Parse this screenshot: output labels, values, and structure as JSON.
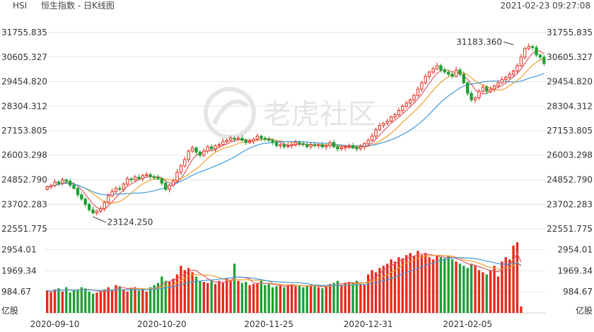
{
  "header": {
    "symbol": "HSI",
    "title": "恒生指数 - 日K线图",
    "timestamp": "2021-02-23 09:27:08"
  },
  "watermark": "老虎社区",
  "colors": {
    "up": "#e8291c",
    "down": "#1f9f35",
    "ma1": "#e05a6a",
    "ma2": "#f0a030",
    "ma3": "#3f9ad8",
    "grid": "#e6e6e6",
    "text": "#333333"
  },
  "chart_data": {
    "type": "candlestick",
    "price_axis": {
      "ticks": [
        31755.835,
        30605.327,
        29454.82,
        28304.312,
        27153.805,
        26003.298,
        24852.79,
        23702.283,
        22551.775
      ],
      "tick_labels": [
        "31755.835",
        "30605.327",
        "29454.820",
        "28304.312",
        "27153.805",
        "26003.298",
        "24852.790",
        "23702.283",
        "22551.775"
      ],
      "range": [
        22551.775,
        31755.835
      ]
    },
    "volume_axis": {
      "ticks": [
        2954.01,
        1969.34,
        984.67
      ],
      "tick_labels": [
        "2954.01",
        "1969.34",
        "984.67"
      ],
      "unit_label": "亿股",
      "range": [
        0,
        3300
      ]
    },
    "x_labels": [
      "2020-09-10",
      "2020-10-20",
      "2020-11-25",
      "2020-12-31",
      "2021-02-05"
    ],
    "x_label_index": [
      2,
      30,
      58,
      84,
      110
    ],
    "annotations": [
      {
        "text": "31183.360",
        "kind": "high",
        "index": 122
      },
      {
        "text": "23124.250",
        "kind": "low",
        "index": 12
      }
    ],
    "closes": [
      24520,
      24580,
      24750,
      24680,
      24850,
      24790,
      24600,
      24450,
      24150,
      23950,
      23700,
      23450,
      23300,
      23380,
      23500,
      23800,
      24100,
      24300,
      24450,
      24400,
      24650,
      24900,
      24850,
      24980,
      24900,
      25050,
      25100,
      25000,
      24950,
      24900,
      24700,
      24400,
      24600,
      24800,
      25200,
      25500,
      25800,
      26200,
      26350,
      26150,
      26000,
      26200,
      26400,
      26300,
      26450,
      26500,
      26650,
      26700,
      26800,
      26750,
      26800,
      26700,
      26600,
      26650,
      26750,
      26900,
      26800,
      26750,
      26700,
      26600,
      26450,
      26500,
      26400,
      26450,
      26500,
      26600,
      26550,
      26500,
      26400,
      26500,
      26450,
      26500,
      26400,
      26450,
      26600,
      26400,
      26300,
      26350,
      26400,
      26450,
      26350,
      26300,
      26400,
      26550,
      26700,
      26900,
      27200,
      27400,
      27500,
      27600,
      27800,
      27900,
      28100,
      28300,
      28450,
      28600,
      28800,
      29100,
      29400,
      29700,
      29900,
      30050,
      30200,
      30000,
      29900,
      29800,
      29700,
      30000,
      29800,
      29400,
      28900,
      28600,
      28700,
      29000,
      29200,
      29000,
      29100,
      29250,
      29400,
      29550,
      29650,
      29800,
      29950,
      30200,
      30600,
      31000,
      31100,
      31050,
      30700,
      30600,
      30300
    ],
    "opens": [
      24400,
      24520,
      24580,
      24750,
      24680,
      24850,
      24790,
      24600,
      24450,
      24150,
      23950,
      23700,
      23450,
      23300,
      23380,
      23500,
      23800,
      24100,
      24300,
      24450,
      24400,
      24650,
      24900,
      24850,
      24980,
      24900,
      25050,
      25100,
      25000,
      24950,
      24900,
      24700,
      24400,
      24600,
      24800,
      25200,
      25500,
      25800,
      26200,
      26350,
      26150,
      26000,
      26200,
      26400,
      26300,
      26450,
      26500,
      26650,
      26700,
      26800,
      26750,
      26800,
      26700,
      26600,
      26650,
      26750,
      26900,
      26800,
      26750,
      26700,
      26600,
      26450,
      26500,
      26400,
      26450,
      26500,
      26600,
      26550,
      26500,
      26400,
      26500,
      26450,
      26500,
      26400,
      26450,
      26600,
      26400,
      26300,
      26350,
      26400,
      26450,
      26350,
      26300,
      26400,
      26550,
      26700,
      26900,
      27200,
      27400,
      27500,
      27600,
      27800,
      27900,
      28100,
      28300,
      28450,
      28600,
      28800,
      29100,
      29400,
      29700,
      29900,
      30050,
      30200,
      30000,
      29900,
      29800,
      29700,
      30000,
      29800,
      29400,
      28900,
      28600,
      28700,
      29000,
      29200,
      29000,
      29100,
      29250,
      29400,
      29550,
      29650,
      29800,
      29950,
      30200,
      30600,
      31000,
      31100,
      31050,
      30700,
      30600
    ],
    "volumes": [
      1050,
      980,
      1100,
      1150,
      1000,
      1200,
      950,
      1050,
      1100,
      1200,
      1150,
      1000,
      900,
      950,
      1000,
      1100,
      1200,
      1050,
      1300,
      1250,
      1100,
      1000,
      1150,
      1200,
      1050,
      1100,
      1000,
      1200,
      1300,
      1400,
      1700,
      1500,
      1450,
      1600,
      1800,
      2200,
      2000,
      2100,
      1900,
      1700,
      1500,
      1450,
      1400,
      1500,
      1350,
      1500,
      1400,
      1600,
      1550,
      2300,
      1500,
      1400,
      1450,
      1300,
      1350,
      1400,
      1500,
      1300,
      1350,
      1200,
      1250,
      1300,
      1200,
      1300,
      1350,
      1250,
      1300,
      1200,
      1250,
      1300,
      1250,
      1200,
      1150,
      1250,
      1350,
      1400,
      1500,
      1300,
      1400,
      1450,
      1400,
      1500,
      1350,
      1300,
      1800,
      2000,
      1900,
      2100,
      2200,
      2300,
      2500,
      2400,
      2600,
      2550,
      2700,
      2800,
      2650,
      2900,
      2700,
      2800,
      2600,
      2500,
      2700,
      2600,
      2550,
      2650,
      2500,
      2400,
      2300,
      2200,
      2100,
      2300,
      2200,
      2000,
      1900,
      1800,
      2000,
      2200,
      1700,
      2400,
      2600,
      2500,
      3150,
      3300,
      300
    ]
  }
}
